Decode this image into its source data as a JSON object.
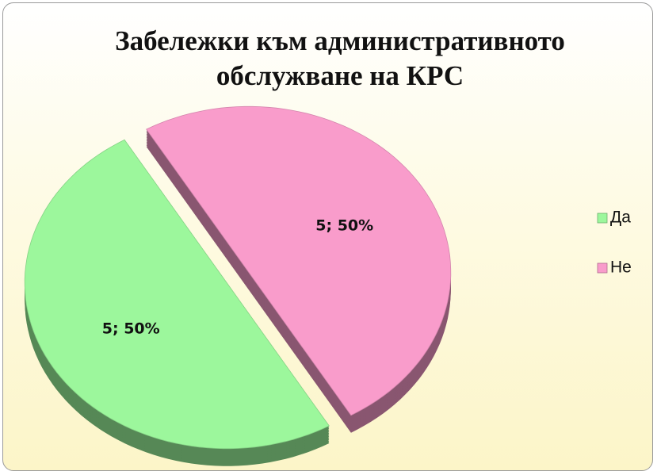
{
  "chart_data": {
    "type": "pie",
    "title": "Забележки към административното обслужване на КРС",
    "categories": [
      "Да",
      "Не"
    ],
    "values": [
      5,
      5
    ],
    "value_labels": [
      "5; 50%",
      "5; 50%"
    ],
    "colors": [
      "#9cf79c",
      "#f99ccb"
    ],
    "legend": "right"
  }
}
